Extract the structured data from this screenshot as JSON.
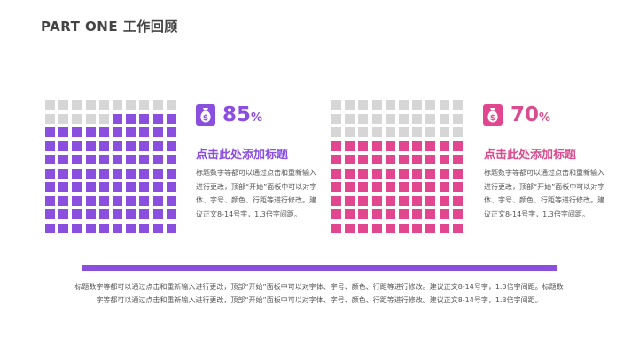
{
  "header": {
    "title": "PART ONE 工作回顾"
  },
  "left_card": {
    "percent_value": "85",
    "percent_sign": "%",
    "filled_cells": 85,
    "total_cells": 100,
    "fill_color": "#8b4fe0",
    "icon": "money-bag-icon",
    "title": "点击此处添加标题",
    "body": "标题数字等都可以通过点击和重新输入进行更改，顶部“开始”面板中可以对字体、字号、颜色、行距等进行修改。建议正文8-14号字，1.3倍字间距。"
  },
  "right_card": {
    "percent_value": "70",
    "percent_sign": "%",
    "filled_cells": 70,
    "total_cells": 100,
    "fill_color": "#e2468f",
    "icon": "money-bag-icon",
    "title": "点击此处添加标题",
    "body": "标题数字等都可以通过点击和重新输入进行更改，顶部“开始”面板中可以对字体、字号、颜色、行距等进行修改。建议正文8-14号字，1.3倍字间距。"
  },
  "footer": {
    "divider_color": "#8b4fe0",
    "text": "标题数字等都可以通过点击和重新输入进行更改，顶部“开始”面板中可以对字体、字号、颜色、行距等进行修改。建议正文8-14号字，1.3倍字间距。标题数字等都可以通过点击和重新输入进行更改，顶部“开始”面板中可以对字体、字号、颜色、行距等进行修改。建议正文8-14号字，1.3倍字间距。"
  }
}
